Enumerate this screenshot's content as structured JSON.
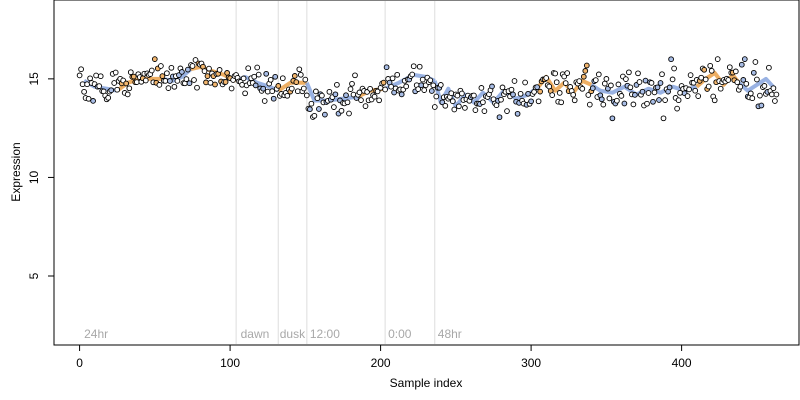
{
  "chart_data": {
    "type": "scatter",
    "title": "",
    "xlabel": "Sample index",
    "ylabel": "Expression",
    "xlim": [
      -17,
      478
    ],
    "ylim": [
      1.5,
      19
    ],
    "x_ticks": [
      0,
      100,
      200,
      300,
      400
    ],
    "y_ticks": [
      5,
      10,
      15
    ],
    "grid": false,
    "colors": {
      "point_outline": "#000000",
      "light_phase": "#f2b66e",
      "dark_phase": "#a8bde6",
      "light_line": "#e89a3c",
      "dark_line": "#7f9fdc",
      "guide_line": "#dddddd",
      "region_label": "#a8a8a8"
    },
    "vlines": [
      104,
      132,
      151,
      203,
      236
    ],
    "region_labels": [
      {
        "x": 3,
        "text": "24hr"
      },
      {
        "x": 107,
        "text": "dawn"
      },
      {
        "x": 133,
        "text": "dusk"
      },
      {
        "x": 153,
        "text": "12:00"
      },
      {
        "x": 205,
        "text": "0:00"
      },
      {
        "x": 238,
        "text": "48hr"
      }
    ],
    "trend_segments": [
      {
        "color": "dark",
        "points": [
          [
            3,
            14.9
          ],
          [
            10,
            14.6
          ],
          [
            18,
            14.5
          ],
          [
            25,
            14.4
          ]
        ]
      },
      {
        "color": "light",
        "points": [
          [
            25,
            14.4
          ],
          [
            32,
            14.8
          ],
          [
            40,
            15.0
          ],
          [
            48,
            15.0
          ],
          [
            55,
            15.0
          ]
        ]
      },
      {
        "color": "dark",
        "points": [
          [
            55,
            15.0
          ],
          [
            62,
            14.9
          ],
          [
            68,
            15.1
          ],
          [
            74,
            15.5
          ]
        ]
      },
      {
        "color": "light",
        "points": [
          [
            74,
            15.5
          ],
          [
            80,
            15.6
          ],
          [
            88,
            15.4
          ],
          [
            96,
            15.2
          ],
          [
            104,
            14.9
          ]
        ]
      },
      {
        "color": "dark",
        "points": [
          [
            104,
            14.9
          ],
          [
            110,
            15.1
          ],
          [
            118,
            14.8
          ],
          [
            126,
            14.6
          ],
          [
            132,
            14.4
          ]
        ]
      },
      {
        "color": "light",
        "points": [
          [
            132,
            14.4
          ],
          [
            140,
            14.8
          ],
          [
            151,
            14.8
          ]
        ]
      },
      {
        "color": "dark",
        "points": [
          [
            151,
            14.8
          ],
          [
            156,
            13.9
          ],
          [
            165,
            13.9
          ],
          [
            175,
            14.0
          ],
          [
            185,
            14.1
          ]
        ]
      },
      {
        "color": "light",
        "points": [
          [
            185,
            14.1
          ],
          [
            193,
            14.4
          ],
          [
            203,
            14.5
          ]
        ]
      },
      {
        "color": "dark",
        "points": [
          [
            203,
            14.5
          ],
          [
            212,
            14.8
          ],
          [
            222,
            15.2
          ],
          [
            230,
            15.1
          ],
          [
            236,
            14.9
          ]
        ]
      },
      {
        "color": "dark",
        "points": [
          [
            236,
            14.9
          ],
          [
            240,
            13.8
          ],
          [
            245,
            14.5
          ],
          [
            250,
            13.6
          ],
          [
            256,
            14.2
          ],
          [
            262,
            13.8
          ],
          [
            268,
            14.3
          ],
          [
            275,
            13.8
          ],
          [
            282,
            14.4
          ],
          [
            290,
            14.0
          ],
          [
            298,
            14.2
          ],
          [
            305,
            14.6
          ]
        ]
      },
      {
        "color": "light",
        "points": [
          [
            305,
            14.6
          ],
          [
            310,
            15.1
          ],
          [
            316,
            14.4
          ],
          [
            322,
            14.8
          ],
          [
            328,
            14.3
          ],
          [
            334,
            14.9
          ],
          [
            340,
            14.7
          ]
        ]
      },
      {
        "color": "dark",
        "points": [
          [
            340,
            14.7
          ],
          [
            346,
            14.4
          ],
          [
            354,
            14.3
          ],
          [
            362,
            14.6
          ],
          [
            370,
            14.2
          ],
          [
            378,
            14.5
          ],
          [
            386,
            14.3
          ],
          [
            394,
            14.6
          ],
          [
            402,
            14.4
          ],
          [
            410,
            14.6
          ]
        ]
      },
      {
        "color": "light",
        "points": [
          [
            410,
            14.6
          ],
          [
            416,
            15.0
          ],
          [
            422,
            15.3
          ],
          [
            428,
            14.7
          ],
          [
            434,
            15.2
          ],
          [
            438,
            14.8
          ]
        ]
      },
      {
        "color": "dark",
        "points": [
          [
            438,
            14.8
          ],
          [
            444,
            14.4
          ],
          [
            450,
            14.7
          ],
          [
            456,
            15.0
          ],
          [
            462,
            14.5
          ]
        ]
      }
    ],
    "anchors": [
      [
        0,
        14.7
      ],
      [
        8,
        14.6
      ],
      [
        16,
        14.6
      ],
      [
        24,
        14.4
      ],
      [
        32,
        14.8
      ],
      [
        40,
        15.0
      ],
      [
        48,
        15.0
      ],
      [
        56,
        14.9
      ],
      [
        64,
        15.0
      ],
      [
        72,
        15.3
      ],
      [
        80,
        15.6
      ],
      [
        88,
        15.4
      ],
      [
        96,
        15.2
      ],
      [
        104,
        14.8
      ],
      [
        112,
        15.0
      ],
      [
        120,
        14.8
      ],
      [
        128,
        14.6
      ],
      [
        132,
        14.4
      ],
      [
        140,
        14.7
      ],
      [
        150,
        14.8
      ],
      [
        152,
        14.0
      ],
      [
        160,
        13.9
      ],
      [
        170,
        13.9
      ],
      [
        180,
        14.1
      ],
      [
        190,
        14.3
      ],
      [
        200,
        14.4
      ],
      [
        208,
        14.8
      ],
      [
        216,
        15.1
      ],
      [
        224,
        15.2
      ],
      [
        234,
        14.9
      ],
      [
        237,
        13.9
      ],
      [
        246,
        14.1
      ],
      [
        256,
        14.0
      ],
      [
        266,
        14.0
      ],
      [
        276,
        14.0
      ],
      [
        286,
        14.1
      ],
      [
        296,
        14.1
      ],
      [
        306,
        14.5
      ],
      [
        316,
        14.7
      ],
      [
        326,
        14.7
      ],
      [
        336,
        14.8
      ],
      [
        346,
        14.4
      ],
      [
        356,
        14.4
      ],
      [
        366,
        14.4
      ],
      [
        376,
        14.3
      ],
      [
        386,
        14.4
      ],
      [
        396,
        14.5
      ],
      [
        406,
        14.5
      ],
      [
        416,
        15.0
      ],
      [
        426,
        15.0
      ],
      [
        436,
        15.1
      ],
      [
        446,
        14.5
      ],
      [
        456,
        14.8
      ],
      [
        463,
        14.3
      ]
    ],
    "n_points": 464,
    "point_noise_sd": 0.42,
    "light_ranges": [
      [
        27,
        55
      ],
      [
        74,
        104
      ],
      [
        132,
        151
      ],
      [
        185,
        203
      ],
      [
        305,
        340
      ],
      [
        410,
        438
      ]
    ]
  }
}
